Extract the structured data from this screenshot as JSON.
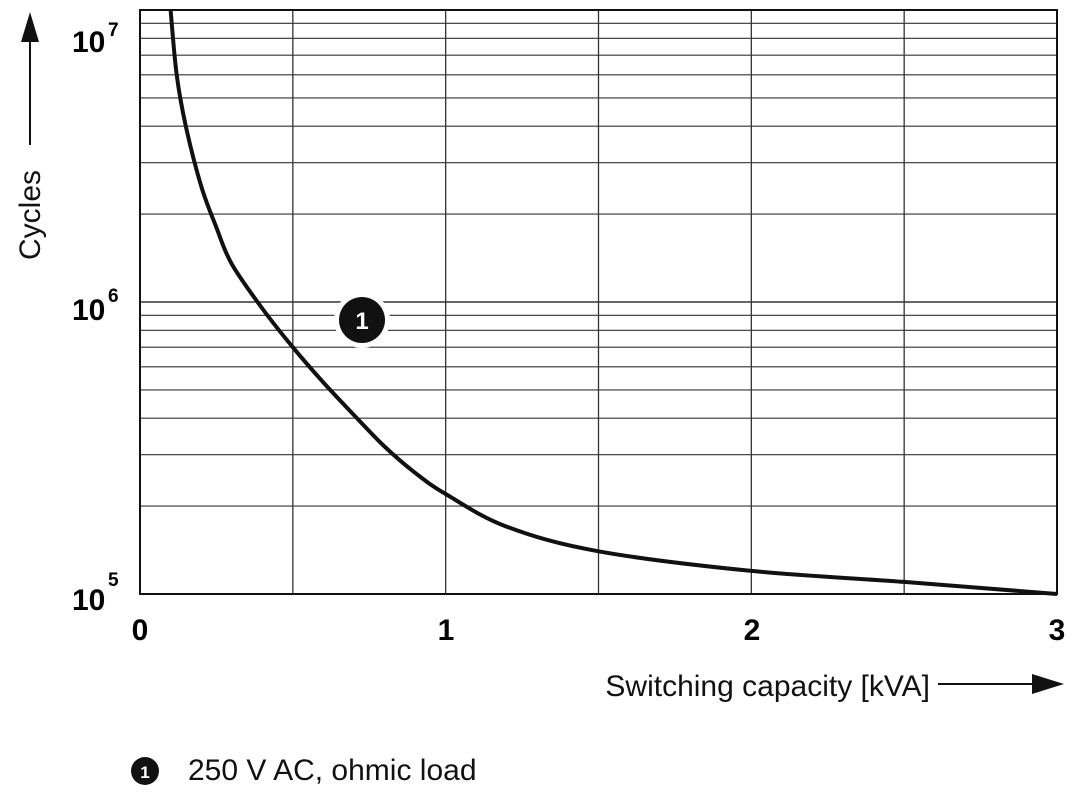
{
  "chart_data": {
    "type": "line",
    "xlabel": "Switching capacity [kVA]",
    "ylabel": "Cycles",
    "xlim": [
      0,
      3
    ],
    "ylim": [
      100000,
      10000000
    ],
    "yscale": "log",
    "x_ticks": [
      "0",
      "1",
      "2",
      "3"
    ],
    "y_ticks": [
      {
        "base": "10",
        "exp": "5"
      },
      {
        "base": "10",
        "exp": "6"
      },
      {
        "base": "10",
        "exp": "7"
      }
    ],
    "grid": true,
    "series": [
      {
        "marker": "1",
        "x": [
          0.1,
          0.12,
          0.15,
          0.2,
          0.25,
          0.3,
          0.4,
          0.5,
          0.6,
          0.7,
          0.8,
          0.9,
          1.0,
          1.2,
          1.5,
          2.0,
          2.5,
          3.0
        ],
        "y": [
          10000000,
          6000000,
          4000000,
          2500000,
          1800000,
          1350000,
          950000,
          700000,
          530000,
          410000,
          320000,
          260000,
          220000,
          170000,
          140000,
          120000,
          110000,
          100000
        ]
      }
    ],
    "annotations": [
      {
        "label": "1",
        "x": 0.73,
        "y": 900000
      }
    ]
  },
  "legend": {
    "marker": "1",
    "text": "250 V AC, ohmic load"
  }
}
